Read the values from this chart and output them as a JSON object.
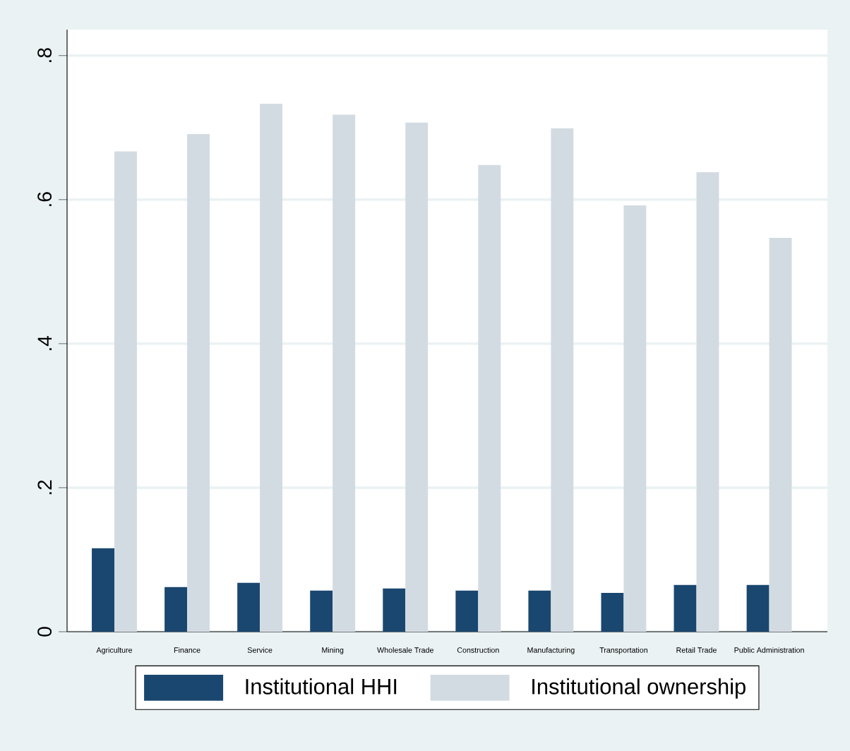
{
  "chart_data": {
    "type": "bar",
    "categories": [
      "Agriculture",
      "Finance",
      "Service",
      "Mining",
      "Wholesale Trade",
      "Construction",
      "Manufacturing",
      "Transportation",
      "Retail Trade",
      "Public Administration"
    ],
    "series": [
      {
        "name": "Institutional HHI",
        "color": "#1a476f",
        "values": [
          0.116,
          0.062,
          0.068,
          0.057,
          0.06,
          0.057,
          0.057,
          0.054,
          0.065,
          0.065
        ]
      },
      {
        "name": "Institutional ownership",
        "color": "#d3dbe2",
        "values": [
          0.667,
          0.691,
          0.733,
          0.718,
          0.707,
          0.648,
          0.699,
          0.592,
          0.638,
          0.547
        ]
      }
    ],
    "ylim": [
      0,
      0.836
    ],
    "yticks": [
      {
        "value": 0,
        "label": "0"
      },
      {
        "value": 0.2,
        "label": ".2"
      },
      {
        "value": 0.4,
        "label": ".4"
      },
      {
        "value": 0.6,
        "label": ".6"
      },
      {
        "value": 0.8,
        "label": ".8"
      }
    ],
    "grid": "y",
    "legend": "bottom"
  }
}
